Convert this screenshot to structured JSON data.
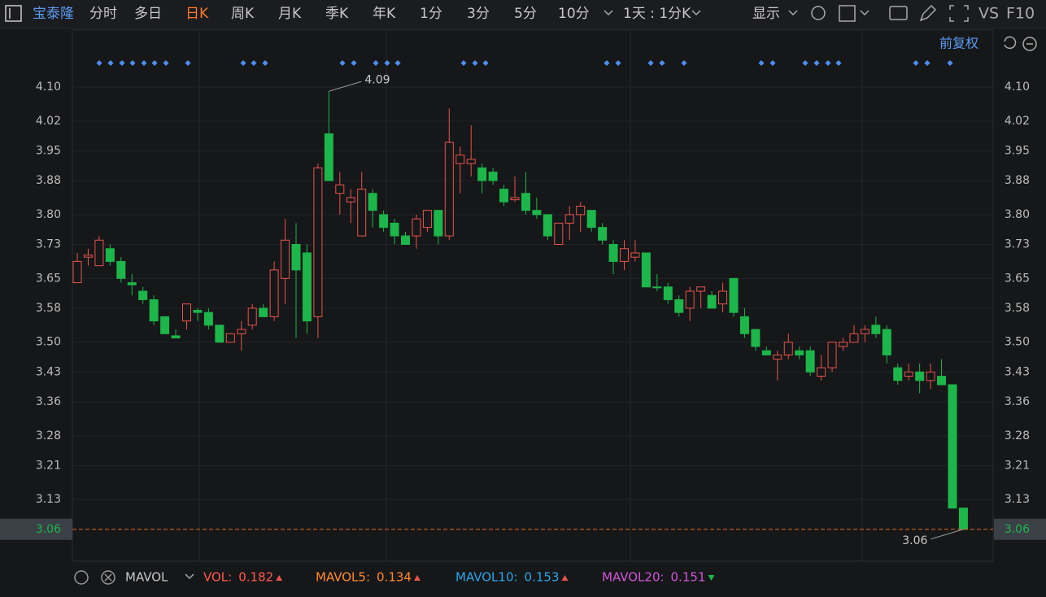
{
  "toolbar": {
    "stock": "宝泰隆",
    "tabs": [
      "分时",
      "多日",
      "日K",
      "周K",
      "月K",
      "季K",
      "年K",
      "1分",
      "3分",
      "5分",
      "10分"
    ],
    "active_tab": 2,
    "period": "1天 : 1分K",
    "display": "显示",
    "vs": "VS",
    "f10": "F10"
  },
  "adjust": "前复权",
  "chart_data": {
    "type": "candlestick",
    "open": [
      3.64,
      3.7,
      3.68,
      3.72,
      3.69,
      3.64,
      3.62,
      3.6,
      3.56,
      3.515,
      3.55,
      3.575,
      3.57,
      3.54,
      3.5,
      3.52,
      3.54,
      3.58,
      3.56,
      3.65,
      3.73,
      3.71,
      3.56,
      3.99,
      3.85,
      3.83,
      3.75,
      3.85,
      3.8,
      3.78,
      3.75,
      3.75,
      3.77,
      3.81,
      3.75,
      3.92,
      3.92,
      3.91,
      3.9,
      3.86,
      3.835,
      3.85,
      3.81,
      3.8,
      3.73,
      3.78,
      3.8,
      3.81,
      3.77,
      3.73,
      3.69,
      3.7,
      3.71,
      3.63,
      3.63,
      3.6,
      3.58,
      3.62,
      3.61,
      3.59,
      3.65,
      3.56,
      3.53,
      3.48,
      3.46,
      3.47,
      3.48,
      3.48,
      3.42,
      3.44,
      3.49,
      3.5,
      3.52,
      3.54,
      3.53,
      3.44,
      3.42,
      3.43,
      3.41,
      3.42,
      3.4,
      3.11
    ],
    "high": [
      3.71,
      3.72,
      3.75,
      3.73,
      3.7,
      3.66,
      3.63,
      3.61,
      3.56,
      3.53,
      3.59,
      3.58,
      3.58,
      3.54,
      3.52,
      3.55,
      3.59,
      3.59,
      3.69,
      3.79,
      3.78,
      3.73,
      3.92,
      4.09,
      3.9,
      3.86,
      3.9,
      3.86,
      3.81,
      3.79,
      3.76,
      3.8,
      3.81,
      3.81,
      4.05,
      3.96,
      4.01,
      3.92,
      3.91,
      3.87,
      3.89,
      3.9,
      3.84,
      3.8,
      3.78,
      3.82,
      3.83,
      3.81,
      3.78,
      3.74,
      3.74,
      3.74,
      3.71,
      3.66,
      3.64,
      3.61,
      3.63,
      3.63,
      3.62,
      3.64,
      3.65,
      3.58,
      3.53,
      3.49,
      3.48,
      3.52,
      3.49,
      3.49,
      3.47,
      3.5,
      3.51,
      3.54,
      3.54,
      3.56,
      3.54,
      3.45,
      3.45,
      3.45,
      3.45,
      3.46,
      3.4,
      3.11
    ],
    "low": [
      3.64,
      3.68,
      3.68,
      3.68,
      3.64,
      3.61,
      3.59,
      3.54,
      3.52,
      3.51,
      3.53,
      3.55,
      3.53,
      3.5,
      3.5,
      3.48,
      3.53,
      3.56,
      3.55,
      3.59,
      3.51,
      3.52,
      3.51,
      3.88,
      3.8,
      3.78,
      3.75,
      3.77,
      3.76,
      3.73,
      3.73,
      3.72,
      3.76,
      3.73,
      3.74,
      3.85,
      3.89,
      3.85,
      3.87,
      3.82,
      3.83,
      3.8,
      3.79,
      3.74,
      3.73,
      3.74,
      3.76,
      3.76,
      3.73,
      3.66,
      3.67,
      3.69,
      3.63,
      3.62,
      3.59,
      3.56,
      3.55,
      3.58,
      3.58,
      3.57,
      3.56,
      3.51,
      3.48,
      3.47,
      3.41,
      3.46,
      3.46,
      3.42,
      3.41,
      3.43,
      3.48,
      3.5,
      3.5,
      3.51,
      3.45,
      3.4,
      3.41,
      3.38,
      3.39,
      3.4,
      3.11,
      3.06
    ],
    "close": [
      3.69,
      3.705,
      3.74,
      3.69,
      3.65,
      3.635,
      3.6,
      3.55,
      3.52,
      3.51,
      3.59,
      3.57,
      3.54,
      3.5,
      3.52,
      3.53,
      3.58,
      3.56,
      3.67,
      3.74,
      3.67,
      3.55,
      3.91,
      3.88,
      3.87,
      3.84,
      3.86,
      3.81,
      3.77,
      3.75,
      3.73,
      3.79,
      3.81,
      3.75,
      3.97,
      3.94,
      3.93,
      3.88,
      3.88,
      3.83,
      3.84,
      3.81,
      3.8,
      3.75,
      3.78,
      3.8,
      3.82,
      3.77,
      3.74,
      3.69,
      3.72,
      3.71,
      3.63,
      3.628,
      3.6,
      3.57,
      3.62,
      3.63,
      3.58,
      3.62,
      3.57,
      3.52,
      3.49,
      3.47,
      3.47,
      3.5,
      3.47,
      3.43,
      3.44,
      3.5,
      3.5,
      3.52,
      3.53,
      3.52,
      3.47,
      3.41,
      3.43,
      3.41,
      3.43,
      3.4,
      3.11,
      3.06
    ],
    "up_color": "#e8544c",
    "down_color": "#1cb64a",
    "ylim": [
      2.985,
      4.234
    ],
    "yticks": [
      {
        "value": 4.1,
        "label": "4.10"
      },
      {
        "value": 4.02,
        "label": "4.02"
      },
      3.95,
      3.88,
      {
        "value": 3.8,
        "label": "3.80"
      },
      3.73,
      3.65,
      3.58,
      {
        "value": 3.5,
        "label": "3.50"
      },
      3.43,
      3.36,
      3.28,
      3.21,
      3.13
    ],
    "high_marker": 4.09,
    "low_marker": 3.06,
    "last_price": 3.06,
    "last_price_color": "#e06a2a"
  },
  "indicator_bar": {
    "name": "MAVOL",
    "items": [
      {
        "label": "VOL:",
        "value": 0.182,
        "color": "#ff5a4a",
        "trend": "up"
      },
      {
        "label": "MAVOL5:",
        "value": 0.134,
        "color": "#ff8c2a",
        "trend": "up"
      },
      {
        "label": "MAVOL10:",
        "value": 0.153,
        "color": "#2aa6e8",
        "trend": "up"
      },
      {
        "label": "MAVOL20:",
        "value": 0.151,
        "color": "#d058d8",
        "trend": "down"
      }
    ]
  }
}
